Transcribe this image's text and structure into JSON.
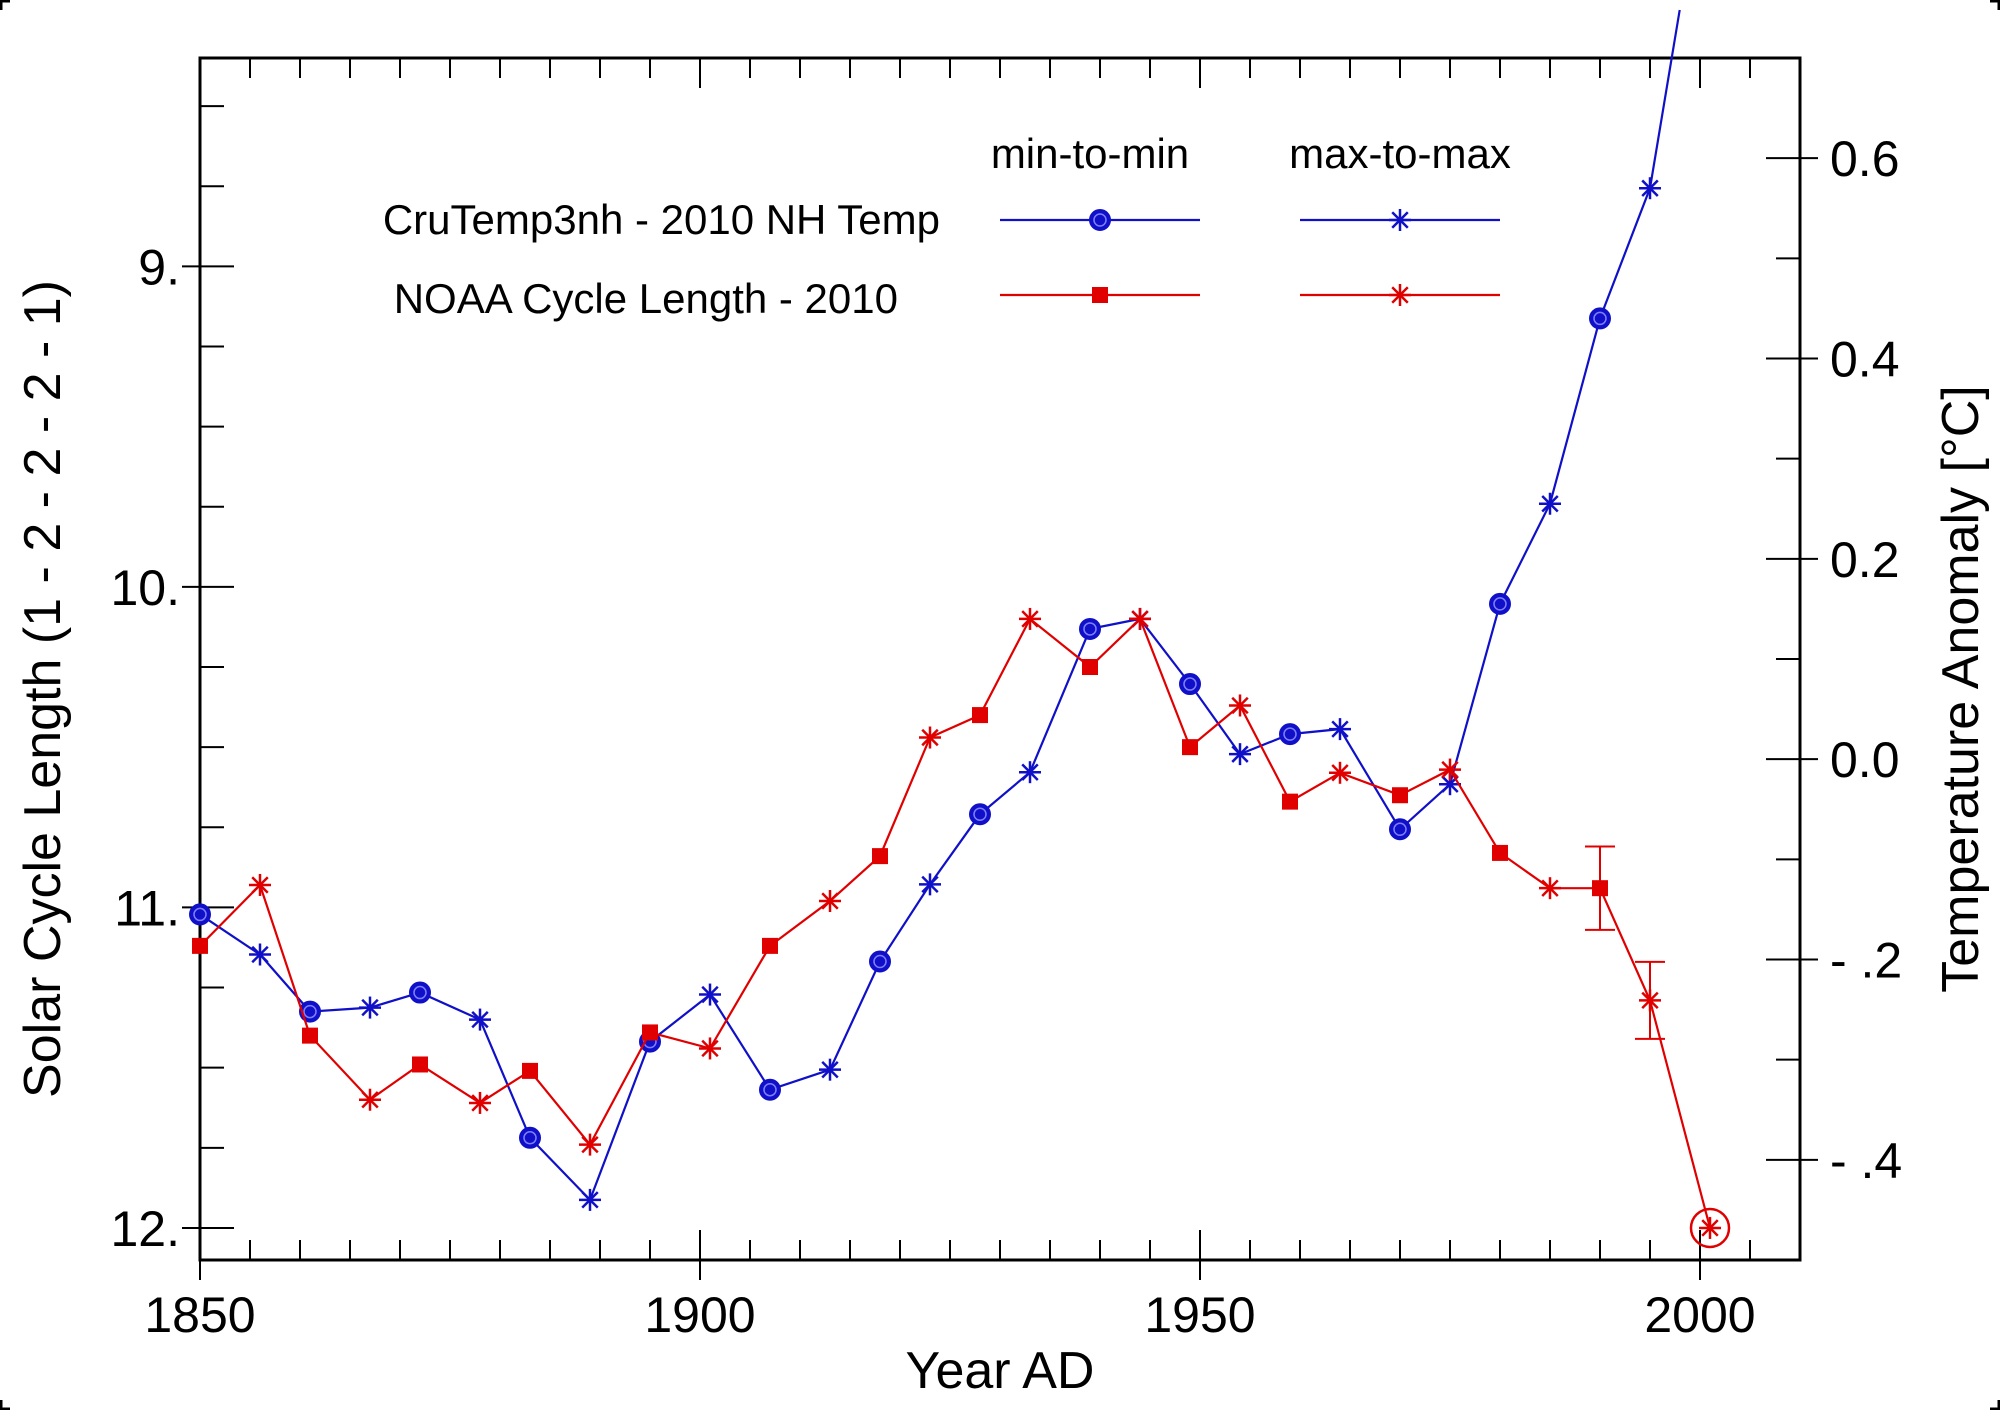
{
  "chart_data": {
    "type": "line",
    "title": "",
    "xlabel": "Year AD",
    "ylabel_left": "Solar Cycle Length  (1 - 2 - 2 - 2 - 1)",
    "ylabel_right": "Temperature Anomaly  [°C]",
    "xlim": [
      1850,
      2010
    ],
    "ylim_left": [
      8.35,
      12.1
    ],
    "ylim_left_inverted": true,
    "ylim_right": [
      -0.5,
      0.7
    ],
    "x_ticks": [
      {
        "value": 1850,
        "label": "1850"
      },
      {
        "value": 1900,
        "label": "1900"
      },
      {
        "value": 1950,
        "label": "1950"
      },
      {
        "value": 2000,
        "label": "2000"
      }
    ],
    "y_left_ticks": [
      {
        "value": 9,
        "label": "9."
      },
      {
        "value": 10,
        "label": "10."
      },
      {
        "value": 11,
        "label": "11."
      },
      {
        "value": 12,
        "label": "12."
      }
    ],
    "y_right_ticks": [
      {
        "value": 0.6,
        "label": "0.6"
      },
      {
        "value": 0.4,
        "label": "0.4"
      },
      {
        "value": 0.2,
        "label": "0.2"
      },
      {
        "value": 0.0,
        "label": "0.0"
      },
      {
        "value": -0.2,
        "label": "- .2"
      },
      {
        "value": -0.4,
        "label": "- .4"
      }
    ],
    "legend": {
      "col_headers": [
        "min-to-min",
        "max-to-max"
      ],
      "row_labels": [
        "CruTemp3nh - 2010 NH Temp",
        "NOAA Cycle Length - 2010"
      ]
    },
    "colors": {
      "temp": "#1010c8",
      "cycle": "#e00000"
    },
    "series": [
      {
        "name": "CruTemp3nh - 2010 NH Temp",
        "axis": "right",
        "color": "#1010c8",
        "points": [
          {
            "x": 1850,
            "y": -0.155,
            "m": "circle"
          },
          {
            "x": 1856,
            "y": -0.195,
            "m": "star"
          },
          {
            "x": 1861,
            "y": -0.252,
            "m": "circle"
          },
          {
            "x": 1867,
            "y": -0.248,
            "m": "star"
          },
          {
            "x": 1872,
            "y": -0.233,
            "m": "circle"
          },
          {
            "x": 1878,
            "y": -0.26,
            "m": "star"
          },
          {
            "x": 1883,
            "y": -0.378,
            "m": "circle"
          },
          {
            "x": 1889,
            "y": -0.44,
            "m": "star"
          },
          {
            "x": 1895,
            "y": -0.282,
            "m": "circle"
          },
          {
            "x": 1901,
            "y": -0.235,
            "m": "star"
          },
          {
            "x": 1907,
            "y": -0.33,
            "m": "circle"
          },
          {
            "x": 1913,
            "y": -0.31,
            "m": "star"
          },
          {
            "x": 1918,
            "y": -0.202,
            "m": "circle"
          },
          {
            "x": 1923,
            "y": -0.125,
            "m": "star"
          },
          {
            "x": 1928,
            "y": -0.055,
            "m": "circle"
          },
          {
            "x": 1933,
            "y": -0.013,
            "m": "star"
          },
          {
            "x": 1939,
            "y": 0.13,
            "m": "circle"
          },
          {
            "x": 1944,
            "y": 0.14,
            "m": "star"
          },
          {
            "x": 1949,
            "y": 0.075,
            "m": "circle"
          },
          {
            "x": 1954,
            "y": 0.005,
            "m": "star"
          },
          {
            "x": 1959,
            "y": 0.025,
            "m": "circle"
          },
          {
            "x": 1964,
            "y": 0.03,
            "m": "star"
          },
          {
            "x": 1970,
            "y": -0.07,
            "m": "circle"
          },
          {
            "x": 1975,
            "y": -0.025,
            "m": "star"
          },
          {
            "x": 1980,
            "y": 0.155,
            "m": "circle"
          },
          {
            "x": 1985,
            "y": 0.255,
            "m": "star"
          },
          {
            "x": 1990,
            "y": 0.44,
            "m": "circle"
          },
          {
            "x": 1995,
            "y": 0.57,
            "m": "star"
          },
          {
            "x": 1998,
            "y": 0.75,
            "m": "none"
          }
        ]
      },
      {
        "name": "NOAA Cycle Length - 2010",
        "axis": "left",
        "color": "#e00000",
        "points": [
          {
            "x": 1850,
            "y": 11.12,
            "m": "square"
          },
          {
            "x": 1856,
            "y": 10.93,
            "m": "star"
          },
          {
            "x": 1861,
            "y": 11.4,
            "m": "square"
          },
          {
            "x": 1867,
            "y": 11.6,
            "m": "star"
          },
          {
            "x": 1872,
            "y": 11.49,
            "m": "square"
          },
          {
            "x": 1878,
            "y": 11.61,
            "m": "star"
          },
          {
            "x": 1883,
            "y": 11.51,
            "m": "square"
          },
          {
            "x": 1889,
            "y": 11.74,
            "m": "star"
          },
          {
            "x": 1895,
            "y": 11.39,
            "m": "square"
          },
          {
            "x": 1901,
            "y": 11.44,
            "m": "star"
          },
          {
            "x": 1907,
            "y": 11.12,
            "m": "square"
          },
          {
            "x": 1913,
            "y": 10.98,
            "m": "star"
          },
          {
            "x": 1918,
            "y": 10.84,
            "m": "square"
          },
          {
            "x": 1923,
            "y": 10.47,
            "m": "star"
          },
          {
            "x": 1928,
            "y": 10.4,
            "m": "square"
          },
          {
            "x": 1933,
            "y": 10.1,
            "m": "star"
          },
          {
            "x": 1939,
            "y": 10.25,
            "m": "square"
          },
          {
            "x": 1944,
            "y": 10.1,
            "m": "star"
          },
          {
            "x": 1949,
            "y": 10.5,
            "m": "square"
          },
          {
            "x": 1954,
            "y": 10.37,
            "m": "star"
          },
          {
            "x": 1959,
            "y": 10.67,
            "m": "square"
          },
          {
            "x": 1964,
            "y": 10.58,
            "m": "star"
          },
          {
            "x": 1970,
            "y": 10.65,
            "m": "square"
          },
          {
            "x": 1975,
            "y": 10.57,
            "m": "star"
          },
          {
            "x": 1980,
            "y": 10.83,
            "m": "square"
          },
          {
            "x": 1985,
            "y": 10.94,
            "m": "star"
          },
          {
            "x": 1990,
            "y": 10.94,
            "m": "square",
            "err": 0.13
          },
          {
            "x": 1995,
            "y": 11.29,
            "m": "star",
            "err": 0.12
          },
          {
            "x": 2001,
            "y": 12.0,
            "m": "star-circled"
          }
        ]
      }
    ]
  }
}
